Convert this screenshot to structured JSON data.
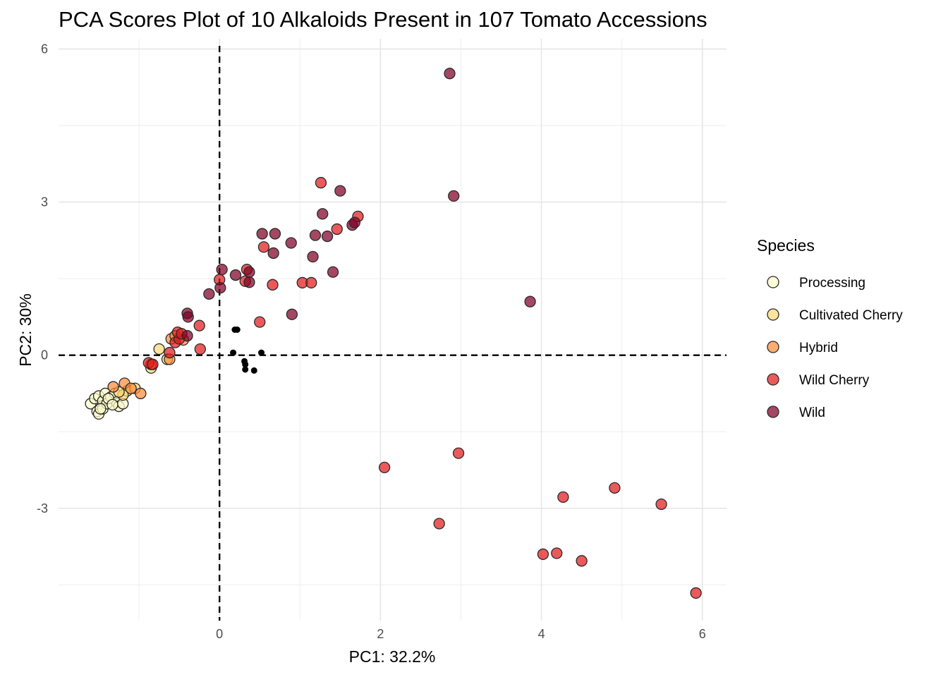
{
  "chart_data": {
    "type": "scatter",
    "title": "PCA Scores Plot of 10 Alkaloids Present in 107 Tomato Accessions",
    "xlabel": "PC1: 32.2%",
    "ylabel": "PC2: 30%",
    "xlim": [
      -2.0,
      6.3
    ],
    "ylim": [
      -5.2,
      6.2
    ],
    "x_ticks": [
      0,
      2,
      4,
      6
    ],
    "y_ticks": [
      -3,
      0,
      3,
      6
    ],
    "x_minor": [
      -1,
      1,
      3,
      5
    ],
    "y_minor": [
      -4.5,
      -1.5,
      1.5,
      4.5
    ],
    "reference_lines": {
      "x": 0,
      "y": 0
    },
    "grid": true,
    "legend": {
      "title": "Species",
      "position": "right"
    },
    "series": [
      {
        "name": "Processing",
        "color": "#ffffcc",
        "points": [
          [
            -1.6,
            -0.95
          ],
          [
            -1.55,
            -0.85
          ],
          [
            -1.5,
            -0.8
          ],
          [
            -1.45,
            -0.9
          ],
          [
            -1.52,
            -1.1
          ],
          [
            -1.5,
            -1.15
          ],
          [
            -1.45,
            -1.05
          ],
          [
            -1.4,
            -0.95
          ],
          [
            -1.42,
            -0.75
          ],
          [
            -1.35,
            -0.82
          ],
          [
            -1.3,
            -0.75
          ],
          [
            -1.28,
            -0.92
          ],
          [
            -1.25,
            -1.0
          ],
          [
            -1.2,
            -0.95
          ],
          [
            -1.38,
            -0.85
          ],
          [
            -1.48,
            -1.05
          ],
          [
            -1.33,
            -0.97
          ]
        ]
      },
      {
        "name": "Cultivated Cherry",
        "color": "#fed976",
        "points": [
          [
            -1.15,
            -0.7
          ],
          [
            -1.2,
            -0.78
          ],
          [
            -1.05,
            -0.65
          ],
          [
            -0.75,
            0.12
          ],
          [
            -0.85,
            -0.25
          ],
          [
            -0.65,
            -0.08
          ],
          [
            -1.25,
            -0.72
          ]
        ]
      },
      {
        "name": "Hybrid",
        "color": "#fd8d3c",
        "points": [
          [
            -1.32,
            -0.62
          ],
          [
            -1.18,
            -0.55
          ],
          [
            -1.1,
            -0.65
          ],
          [
            -0.98,
            -0.75
          ],
          [
            -0.62,
            -0.08
          ],
          [
            -0.6,
            0.32
          ],
          [
            -0.55,
            0.38
          ],
          [
            -0.45,
            0.3
          ],
          [
            -0.85,
            -0.18
          ]
        ]
      },
      {
        "name": "Wild Cherry",
        "color": "#e31a1c",
        "points": [
          [
            -0.88,
            -0.15
          ],
          [
            -0.83,
            -0.18
          ],
          [
            -0.55,
            0.25
          ],
          [
            -0.5,
            0.32
          ],
          [
            -0.52,
            0.45
          ],
          [
            -0.47,
            0.42
          ],
          [
            -0.62,
            0.05
          ],
          [
            -0.25,
            0.58
          ],
          [
            -0.24,
            0.12
          ],
          [
            0.0,
            1.48
          ],
          [
            0.32,
            1.45
          ],
          [
            0.34,
            1.68
          ],
          [
            0.5,
            0.65
          ],
          [
            0.55,
            2.12
          ],
          [
            0.66,
            1.38
          ],
          [
            1.03,
            1.42
          ],
          [
            1.14,
            1.42
          ],
          [
            1.26,
            3.38
          ],
          [
            1.46,
            2.47
          ],
          [
            1.72,
            2.72
          ],
          [
            2.05,
            -2.2
          ],
          [
            2.73,
            -3.3
          ],
          [
            2.97,
            -1.92
          ],
          [
            4.02,
            -3.9
          ],
          [
            4.19,
            -3.88
          ],
          [
            4.27,
            -2.78
          ],
          [
            4.5,
            -4.03
          ],
          [
            4.91,
            -2.6
          ],
          [
            5.49,
            -2.92
          ],
          [
            5.92,
            -4.66
          ]
        ]
      },
      {
        "name": "Wild",
        "color": "#800026",
        "points": [
          [
            -0.4,
            0.82
          ],
          [
            -0.39,
            0.75
          ],
          [
            -0.4,
            0.38
          ],
          [
            -0.13,
            1.2
          ],
          [
            0.03,
            1.68
          ],
          [
            0.01,
            1.32
          ],
          [
            0.2,
            1.57
          ],
          [
            0.37,
            1.63
          ],
          [
            0.37,
            1.43
          ],
          [
            0.53,
            2.38
          ],
          [
            0.67,
            2.0
          ],
          [
            0.69,
            2.38
          ],
          [
            0.89,
            2.2
          ],
          [
            0.9,
            0.8
          ],
          [
            1.16,
            1.93
          ],
          [
            1.19,
            2.35
          ],
          [
            1.28,
            2.77
          ],
          [
            1.34,
            2.33
          ],
          [
            1.41,
            1.63
          ],
          [
            1.5,
            3.22
          ],
          [
            1.65,
            2.55
          ],
          [
            1.68,
            2.6
          ],
          [
            2.86,
            5.52
          ],
          [
            2.91,
            3.12
          ],
          [
            3.86,
            1.05
          ]
        ]
      },
      {
        "name": "",
        "color": "#000000",
        "points": [
          [
            0.19,
            0.5
          ],
          [
            0.22,
            0.5
          ],
          [
            0.17,
            0.05
          ],
          [
            0.31,
            -0.12
          ],
          [
            0.32,
            -0.18
          ],
          [
            0.32,
            -0.28
          ],
          [
            0.43,
            -0.3
          ],
          [
            0.52,
            0.05
          ]
        ]
      }
    ]
  }
}
